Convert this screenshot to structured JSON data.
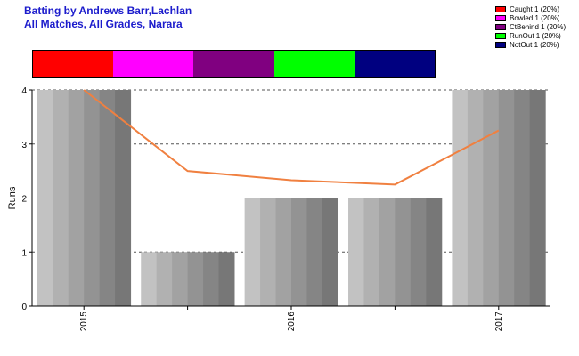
{
  "title_line1": "Batting by Andrews Barr,Lachlan",
  "title_line2": "All Matches, All Grades, Narara",
  "legend": [
    {
      "label": "Caught 1 (20%)",
      "color": "#ff0000"
    },
    {
      "label": "Bowled 1 (20%)",
      "color": "#ff00ff"
    },
    {
      "label": "CtBehind 1 (20%)",
      "color": "#800080"
    },
    {
      "label": "RunOut 1 (20%)",
      "color": "#00ff00"
    },
    {
      "label": "NotOut 1 (20%)",
      "color": "#000080"
    }
  ],
  "chart_data": {
    "type": "bar",
    "ylabel": "Runs",
    "ylim": [
      0,
      4
    ],
    "yticks": [
      0,
      1,
      2,
      3,
      4
    ],
    "xtick_labels": [
      "2015",
      "2016",
      "2017"
    ],
    "values": [
      4,
      1,
      2,
      2,
      4
    ],
    "trend_line": [
      4,
      2.5,
      2.33,
      2.25,
      3.25
    ],
    "trend_color": "#f08040",
    "grid": true
  }
}
